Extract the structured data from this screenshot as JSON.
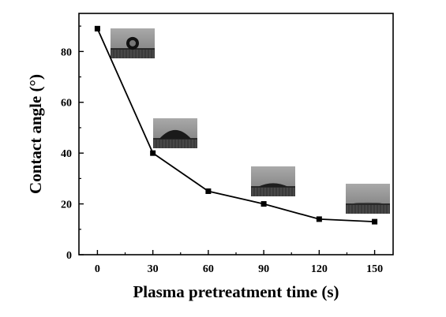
{
  "chart_data": {
    "type": "line",
    "xlabel": "Plasma pretreatment time (s)",
    "ylabel": "Contact angle (°)",
    "x": [
      0,
      30,
      60,
      90,
      120,
      150
    ],
    "series": [
      {
        "values": [
          89,
          40,
          25,
          20,
          14,
          13
        ]
      }
    ],
    "xlim": [
      -10,
      160
    ],
    "ylim": [
      0,
      95
    ],
    "xticks": [
      0,
      30,
      60,
      90,
      120,
      150
    ],
    "yticks": [
      0,
      20,
      40,
      60,
      80
    ],
    "grid": false,
    "legend": "none",
    "line_color": "#000000",
    "marker": "square",
    "annotations": [
      {
        "kind": "droplet-photo",
        "near_x": 0
      },
      {
        "kind": "droplet-photo",
        "near_x": 30
      },
      {
        "kind": "droplet-photo",
        "near_x": 90
      },
      {
        "kind": "droplet-photo",
        "near_x": 150
      }
    ]
  }
}
